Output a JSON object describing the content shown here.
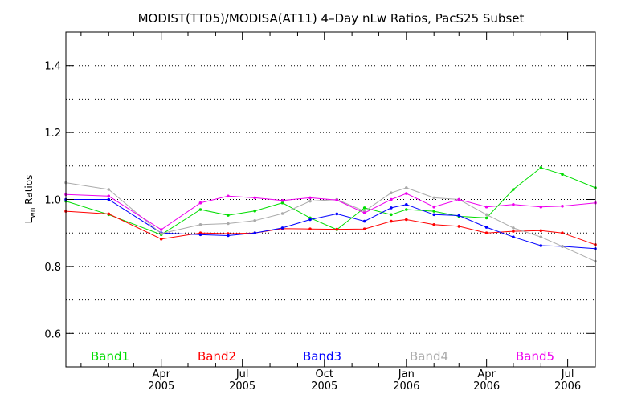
{
  "chart_data": {
    "type": "line",
    "title": "MODIST(TT05)/MODISA(AT11) 4–Day nLw Ratios, PacS25 Subset",
    "ylabel": "L",
    "ylabel_sub": "wn",
    "ylabel_rest": " Ratios",
    "ylim": [
      0.5,
      1.5
    ],
    "yticks": [
      0.6,
      0.8,
      1.0,
      1.2,
      1.4
    ],
    "ytick_labels": [
      "0.6",
      "0.8",
      "1.0",
      "1.2",
      "1.4"
    ],
    "grid_y": [
      0.6,
      0.7,
      0.8,
      0.9,
      1.0,
      1.1,
      1.2,
      1.3,
      1.4
    ],
    "xlim": [
      "2004-12-15",
      "2006-08-01"
    ],
    "x_tick_labels": [
      {
        "month": "Apr",
        "year": "2005",
        "date": "2005-04-01"
      },
      {
        "month": "Jul",
        "year": "2005",
        "date": "2005-07-01"
      },
      {
        "month": "Oct",
        "year": "2005",
        "date": "2005-10-01"
      },
      {
        "month": "Jan",
        "year": "2006",
        "date": "2006-01-01"
      },
      {
        "month": "Apr",
        "year": "2006",
        "date": "2006-04-01"
      },
      {
        "month": "Jul",
        "year": "2006",
        "date": "2006-07-01"
      }
    ],
    "x_minor_ticks": [
      "2005-01-01",
      "2005-02-01",
      "2005-03-01",
      "2005-05-01",
      "2005-06-01",
      "2005-08-01",
      "2005-09-01",
      "2005-11-01",
      "2005-12-01",
      "2006-02-01",
      "2006-03-01",
      "2006-05-01",
      "2006-06-01"
    ],
    "x": [
      "2004-12-15",
      "2005-02-01",
      "2005-04-01",
      "2005-05-15",
      "2005-06-15",
      "2005-07-15",
      "2005-08-15",
      "2005-09-15",
      "2005-10-15",
      "2005-11-15",
      "2005-12-15",
      "2006-01-01",
      "2006-02-01",
      "2006-03-01",
      "2006-04-01",
      "2006-05-01",
      "2006-06-01",
      "2006-06-25",
      "2006-08-01"
    ],
    "series": [
      {
        "name": "Band1",
        "color": "#00dd00",
        "values": [
          0.995,
          0.955,
          0.895,
          0.97,
          0.953,
          0.966,
          0.99,
          0.945,
          0.91,
          0.975,
          0.955,
          0.97,
          0.965,
          0.95,
          0.945,
          1.03,
          1.095,
          1.075,
          1.035
        ]
      },
      {
        "name": "Band2",
        "color": "#ff0000",
        "values": [
          0.965,
          0.957,
          0.882,
          0.9,
          0.898,
          0.9,
          0.913,
          0.912,
          0.911,
          0.912,
          0.935,
          0.94,
          0.925,
          0.92,
          0.9,
          0.905,
          0.907,
          0.9,
          0.865
        ]
      },
      {
        "name": "Band3",
        "color": "#0000ff",
        "values": [
          1.0,
          1.0,
          0.9,
          0.895,
          0.892,
          0.9,
          0.915,
          0.94,
          0.957,
          0.935,
          0.975,
          0.985,
          0.955,
          0.952,
          0.917,
          0.888,
          0.862,
          0.86,
          0.853
        ]
      },
      {
        "name": "Band4",
        "color": "#aaaaaa",
        "values": [
          1.05,
          1.03,
          0.898,
          0.925,
          0.928,
          0.937,
          0.958,
          0.995,
          1.0,
          0.965,
          1.02,
          1.035,
          1.005,
          1.0,
          0.955,
          0.915,
          0.888,
          0.86,
          0.815
        ]
      },
      {
        "name": "Band5",
        "color": "#ee00ee",
        "values": [
          1.015,
          1.01,
          0.91,
          0.99,
          1.01,
          1.005,
          0.997,
          1.005,
          0.998,
          0.96,
          1.0,
          1.018,
          0.978,
          1.0,
          0.978,
          0.985,
          0.978,
          0.98,
          0.99
        ]
      }
    ],
    "legend_placement": "bottom"
  }
}
